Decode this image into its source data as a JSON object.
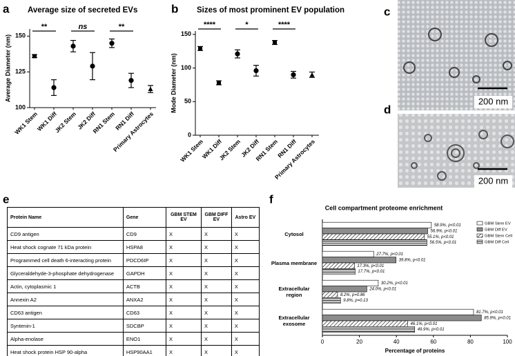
{
  "panel_labels": [
    "a",
    "b",
    "c",
    "d",
    "e",
    "f"
  ],
  "chart_data": [
    {
      "type": "dot",
      "title": "Average size of secreted EVs",
      "ylabel": "Average Diameter (nm)",
      "categories": [
        "WK1 Stem",
        "WK1 Diff",
        "JK2 Stem",
        "JK2 Diff",
        "RN1 Stem",
        "RN1 Diff",
        "Primary Astrocytes"
      ],
      "values": [
        136,
        114,
        143,
        129,
        145,
        119,
        113
      ],
      "errors": [
        1,
        5.5,
        4,
        9.5,
        3,
        5,
        2.5
      ],
      "markers": [
        "square",
        "circle",
        "circle",
        "circle",
        "circle",
        "circle",
        "triangle"
      ],
      "significance": [
        "**",
        "ns",
        "**"
      ],
      "color": "#000000",
      "ylim": [
        100,
        155
      ],
      "yticks": [
        100,
        125,
        150
      ]
    },
    {
      "type": "dot",
      "title": "Sizes of most prominent EV population",
      "ylabel": "Mode Diameter (nm)",
      "categories": [
        "WK1 Stem",
        "WK1 Diff",
        "JK2 Stem",
        "JK2 Diff",
        "RN1 Stem",
        "RN1 Diff",
        "Primary Astrocytes"
      ],
      "values": [
        129,
        78,
        121,
        96,
        138,
        90,
        90
      ],
      "errors": [
        3,
        3,
        6,
        8,
        3,
        5,
        4
      ],
      "markers": [
        "square",
        "square",
        "circle",
        "circle",
        "square",
        "circle",
        "triangle"
      ],
      "significance": [
        "****",
        "*",
        "****"
      ],
      "color": "#000000",
      "ylim": [
        0,
        155
      ],
      "yticks": [
        0,
        50,
        100,
        150
      ]
    },
    {
      "type": "hbar",
      "title": "Cell compartment proteome enrichment",
      "xlabel": "Percentage of proteins",
      "categories": [
        "Cytosol",
        "Plasma membrane",
        "Extracellular region",
        "Extracellular exosome"
      ],
      "series": [
        {
          "name": "GBM Stem EV",
          "color": "#ffffff",
          "pattern": "solid",
          "values": [
            58.9,
            27.7,
            30.2,
            81.7
          ],
          "value_labels": [
            "58.9%, p<0.01",
            "27.7%, p<0.01",
            "30.2%, p<0.01",
            "81.7%, p<0.01"
          ]
        },
        {
          "name": "GBM Diff EV",
          "color": "#8c8c8c",
          "pattern": "solid",
          "values": [
            56.9,
            39.8,
            24.0,
            85.9
          ],
          "value_labels": [
            "56.9%, p<0.01",
            "39.8%, p<0.01",
            "24.0%, p<0.01",
            "85.9%, p<0.01"
          ]
        },
        {
          "name": "GBM Stem Cell",
          "color": "#000000",
          "pattern": "diagonal",
          "values": [
            55.1,
            17.3,
            8.2,
            46.1
          ],
          "value_labels": [
            "55.1%, p<0.01",
            "17.3%, p<0.01",
            "8.2%, p=0.86",
            "46.1%, p<0.01"
          ]
        },
        {
          "name": "GBM Diff Cell",
          "color": "#000000",
          "pattern": "horizontal",
          "values": [
            56.5,
            17.7,
            9.8,
            49.9
          ],
          "value_labels": [
            "56.5%, p<0.01",
            "17.7%, p<0.01",
            "9.8%, p=0.13",
            "49.9%, p<0.01"
          ]
        }
      ],
      "xlim": [
        0,
        100
      ],
      "xticks": [
        0,
        20,
        40,
        60,
        80,
        100
      ],
      "legend": "upper right"
    }
  ],
  "images": [
    {
      "scale_bar": "200 nm"
    },
    {
      "scale_bar": "200 nm"
    }
  ],
  "table": {
    "header": [
      "Protein Name",
      "Gene",
      "GBM STEM EV",
      "GBM DIFF EV",
      "Astro EV"
    ],
    "rows": [
      [
        "CD9 antigen",
        "CD9",
        "X",
        "X",
        "X"
      ],
      [
        "Heat shock cognate 71 kDa protein",
        "HSPA8",
        "X",
        "X",
        "X"
      ],
      [
        "Programmed cell death 6-interacting protein",
        "PDCD6IP",
        "X",
        "X",
        "X"
      ],
      [
        "Glyceraldehyde-3-phosphate dehydrogenase",
        "GAPDH",
        "X",
        "X",
        "X"
      ],
      [
        "Actin, cytoplasmic 1",
        "ACTB",
        "X",
        "X",
        "X"
      ],
      [
        "Annexin A2",
        "ANXA2",
        "X",
        "X",
        "X"
      ],
      [
        "CD63 antigen",
        "CD63",
        "X",
        "X",
        "X"
      ],
      [
        "Syntenin-1",
        "SDCBP",
        "X",
        "X",
        "X"
      ],
      [
        "Alpha-enolase",
        "ENO1",
        "X",
        "X",
        "X"
      ],
      [
        "Heat shock protein HSP 90-alpha",
        "HSP90AA1",
        "X",
        "X",
        "X"
      ]
    ]
  }
}
